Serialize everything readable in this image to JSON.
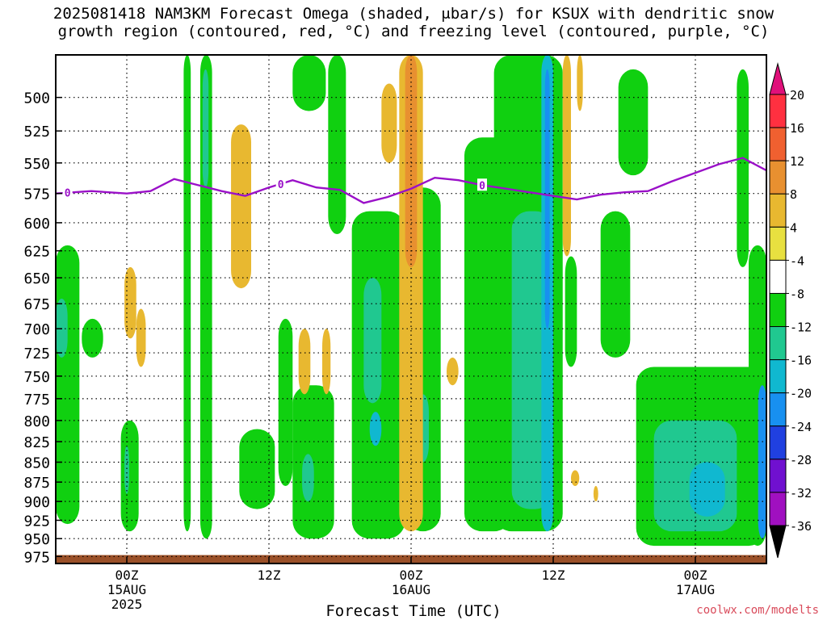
{
  "title_line1": "2025081418 NAM3KM Forecast Omega (shaded, μbar/s) for KSUX with dendritic snow",
  "title_line2": "growth region (contoured, red, °C) and freezing level (contoured, purple, °C)",
  "credit": "coolwx.com/modelts",
  "chart_data": {
    "type": "heatmap",
    "title": "2025081418 NAM3KM Forecast Omega (shaded, μbar/s) for KSUX with dendritic snow growth region (contoured, red, °C) and freezing level (contoured, purple, °C)",
    "xlabel": "Forecast Time (UTC)",
    "ylabel": "",
    "x_ticks": [
      {
        "label": "00Z",
        "sub": "15AUG",
        "sub2": "2025",
        "hour": 6
      },
      {
        "label": "12Z",
        "sub": "",
        "sub2": "",
        "hour": 18
      },
      {
        "label": "00Z",
        "sub": "16AUG",
        "sub2": "",
        "hour": 30
      },
      {
        "label": "12Z",
        "sub": "",
        "sub2": "",
        "hour": 42
      },
      {
        "label": "00Z",
        "sub": "17AUG",
        "sub2": "",
        "hour": 54
      }
    ],
    "xlim_forecast_hours": [
      0,
      60
    ],
    "y_ticks": [
      500,
      525,
      550,
      575,
      600,
      625,
      650,
      675,
      700,
      725,
      750,
      775,
      800,
      825,
      850,
      875,
      900,
      925,
      950,
      975
    ],
    "ylim_hPa": [
      470,
      985
    ],
    "y_scale": "log (pressure)",
    "grid": true,
    "colorbar": {
      "units": "μbar/s",
      "labels": [
        "20",
        "16",
        "12",
        "8",
        "4",
        "-4",
        "-8",
        "-12",
        "-16",
        "-20",
        "-24",
        "-28",
        "-32",
        "-36"
      ],
      "colors": [
        "#ff3040",
        "#f06030",
        "#e89030",
        "#e8b830",
        "#e8e040",
        "#ffffff",
        "#10d010",
        "#20c890",
        "#10b8d0",
        "#1890f0",
        "#2040e0",
        "#7010d0",
        "#a010c0",
        "#b0b0b0"
      ],
      "extend_top_color": "#e0107a",
      "extend_bottom_color": "#000000"
    },
    "freezing_level": {
      "label": "0",
      "label_hours": [
        1,
        19,
        36
      ],
      "hours": [
        0,
        3,
        6,
        8,
        10,
        12,
        14,
        16,
        18,
        20,
        22,
        24,
        26,
        28,
        30,
        32,
        34,
        36,
        38,
        40,
        42,
        44,
        46,
        48,
        50,
        52,
        54,
        56,
        58,
        60
      ],
      "pressure_hPa": [
        575,
        573,
        575,
        573,
        563,
        568,
        573,
        577,
        570,
        564,
        570,
        572,
        583,
        578,
        571,
        562,
        564,
        568,
        571,
        574,
        577,
        580,
        576,
        574,
        573,
        565,
        558,
        551,
        546,
        556
      ]
    },
    "omega_regions": [
      {
        "value": -6,
        "hours": [
          0.0,
          2.0
        ],
        "hPa": [
          620,
          930
        ]
      },
      {
        "value": -10,
        "hours": [
          0.0,
          1.0
        ],
        "hPa": [
          670,
          730
        ]
      },
      {
        "value": -6,
        "hours": [
          2.2,
          4.0
        ],
        "hPa": [
          690,
          730
        ]
      },
      {
        "value": -6,
        "hours": [
          5.5,
          7.0
        ],
        "hPa": [
          800,
          940
        ]
      },
      {
        "value": -10,
        "hours": [
          5.8,
          6.2
        ],
        "hPa": [
          830,
          890
        ]
      },
      {
        "value": -6,
        "hours": [
          10.8,
          11.4
        ],
        "hPa": [
          470,
          940
        ]
      },
      {
        "value": -6,
        "hours": [
          12.2,
          13.2
        ],
        "hPa": [
          470,
          950
        ]
      },
      {
        "value": -10,
        "hours": [
          12.4,
          12.9
        ],
        "hPa": [
          480,
          570
        ]
      },
      {
        "value": -6,
        "hours": [
          15.5,
          18.5
        ],
        "hPa": [
          810,
          910
        ]
      },
      {
        "value": -6,
        "hours": [
          18.8,
          20.0
        ],
        "hPa": [
          690,
          880
        ]
      },
      {
        "value": -6,
        "hours": [
          20.0,
          23.5
        ],
        "hPa": [
          760,
          950
        ]
      },
      {
        "value": -10,
        "hours": [
          20.8,
          21.8
        ],
        "hPa": [
          840,
          900
        ]
      },
      {
        "value": -6,
        "hours": [
          20.0,
          22.8
        ],
        "hPa": [
          470,
          510
        ]
      },
      {
        "value": -6,
        "hours": [
          23.0,
          24.5
        ],
        "hPa": [
          470,
          610
        ]
      },
      {
        "value": -6,
        "hours": [
          25.0,
          29.5
        ],
        "hPa": [
          590,
          950
        ]
      },
      {
        "value": -10,
        "hours": [
          26.0,
          27.5
        ],
        "hPa": [
          650,
          780
        ]
      },
      {
        "value": -12,
        "hours": [
          26.5,
          27.5
        ],
        "hPa": [
          790,
          830
        ]
      },
      {
        "value": -6,
        "hours": [
          27.8,
          29.5
        ],
        "hPa": [
          770,
          920
        ]
      },
      {
        "value": -6,
        "hours": [
          29.5,
          32.5
        ],
        "hPa": [
          570,
          940
        ]
      },
      {
        "value": -10,
        "hours": [
          30.5,
          31.5
        ],
        "hPa": [
          770,
          850
        ]
      },
      {
        "value": -6,
        "hours": [
          34.5,
          38.5
        ],
        "hPa": [
          530,
          940
        ]
      },
      {
        "value": -6,
        "hours": [
          37.0,
          42.8
        ],
        "hPa": [
          470,
          940
        ]
      },
      {
        "value": -10,
        "hours": [
          38.5,
          42.0
        ],
        "hPa": [
          590,
          910
        ]
      },
      {
        "value": -14,
        "hours": [
          41.0,
          42.0
        ],
        "hPa": [
          470,
          940
        ]
      },
      {
        "value": -18,
        "hours": [
          41.3,
          41.7
        ],
        "hPa": [
          480,
          700
        ]
      },
      {
        "value": -6,
        "hours": [
          43.0,
          44.0
        ],
        "hPa": [
          630,
          740
        ]
      },
      {
        "value": -6,
        "hours": [
          46.0,
          48.5
        ],
        "hPa": [
          590,
          730
        ]
      },
      {
        "value": -6,
        "hours": [
          47.5,
          50.0
        ],
        "hPa": [
          480,
          560
        ]
      },
      {
        "value": -6,
        "hours": [
          49.0,
          60.0
        ],
        "hPa": [
          740,
          960
        ]
      },
      {
        "value": -10,
        "hours": [
          50.5,
          57.5
        ],
        "hPa": [
          800,
          940
        ]
      },
      {
        "value": -14,
        "hours": [
          53.5,
          56.5
        ],
        "hPa": [
          850,
          920
        ]
      },
      {
        "value": -6,
        "hours": [
          57.5,
          58.5
        ],
        "hPa": [
          480,
          640
        ]
      },
      {
        "value": -6,
        "hours": [
          58.5,
          60.0
        ],
        "hPa": [
          620,
          960
        ]
      },
      {
        "value": -18,
        "hours": [
          59.3,
          60.0
        ],
        "hPa": [
          760,
          950
        ]
      },
      {
        "value": 6,
        "hours": [
          5.8,
          6.8
        ],
        "hPa": [
          640,
          710
        ]
      },
      {
        "value": 6,
        "hours": [
          6.8,
          7.6
        ],
        "hPa": [
          680,
          740
        ]
      },
      {
        "value": 6,
        "hours": [
          14.8,
          16.5
        ],
        "hPa": [
          520,
          660
        ]
      },
      {
        "value": 6,
        "hours": [
          20.5,
          21.5
        ],
        "hPa": [
          700,
          770
        ]
      },
      {
        "value": 6,
        "hours": [
          22.5,
          23.2
        ],
        "hPa": [
          700,
          770
        ]
      },
      {
        "value": 6,
        "hours": [
          27.5,
          28.8
        ],
        "hPa": [
          490,
          550
        ]
      },
      {
        "value": 6,
        "hours": [
          29.0,
          31.0
        ],
        "hPa": [
          470,
          940
        ]
      },
      {
        "value": 10,
        "hours": [
          29.5,
          30.5
        ],
        "hPa": [
          470,
          640
        ]
      },
      {
        "value": 6,
        "hours": [
          42.8,
          43.5
        ],
        "hPa": [
          470,
          630
        ]
      },
      {
        "value": 6,
        "hours": [
          44.0,
          44.5
        ],
        "hPa": [
          470,
          510
        ]
      },
      {
        "value": 6,
        "hours": [
          43.5,
          44.2
        ],
        "hPa": [
          860,
          880
        ]
      },
      {
        "value": 6,
        "hours": [
          45.4,
          45.8
        ],
        "hPa": [
          880,
          900
        ]
      },
      {
        "value": 6,
        "hours": [
          33.0,
          34.0
        ],
        "hPa": [
          730,
          760
        ]
      }
    ],
    "ground": {
      "color": "#9a5028",
      "top_hPa": 973
    }
  }
}
